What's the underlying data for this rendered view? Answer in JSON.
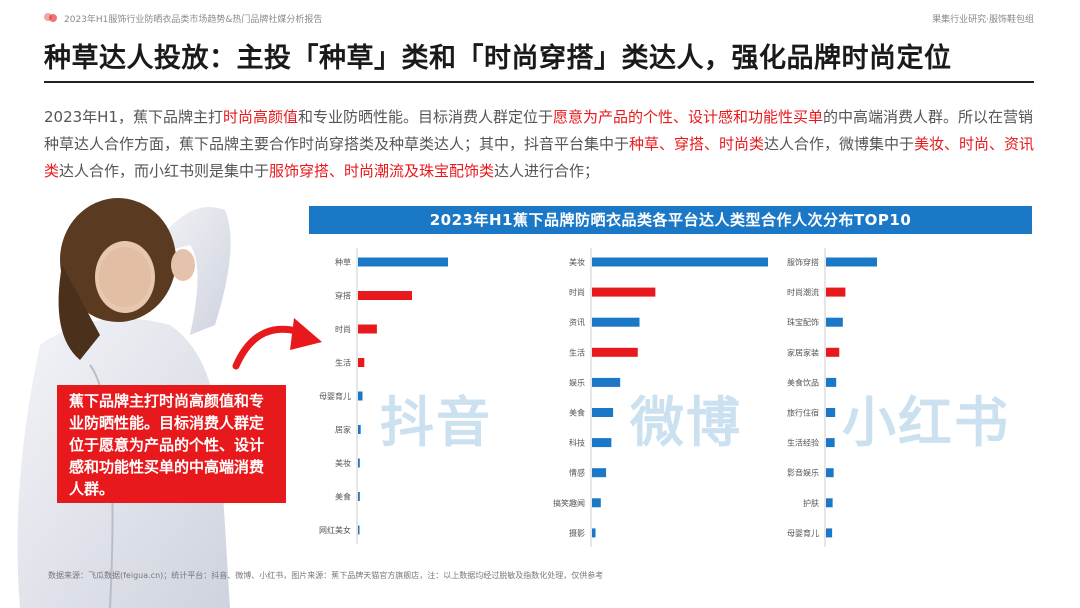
{
  "header": {
    "report_title": "2023年H1服饰行业防晒衣品类市场趋势&热门品牌社媒分析报告",
    "org": "果集行业研究·服饰鞋包组",
    "headline": "种草达人投放：主投「种草」类和「时尚穿搭」类达人，强化品牌时尚定位"
  },
  "intro": {
    "p1_a": "2023年H1，蕉下品牌主打",
    "p1_hl1": "时尚高颜值",
    "p1_b": "和专业防晒性能。目标消费人群定位于",
    "p1_hl2": "愿意为产品的个性、设计感和功能性买单",
    "p1_c": "的中高端消费人群。所以在营销种草达人合作方面，蕉下品牌主要合作时尚穿搭类及种草类达人；其中，抖音平台集中于",
    "p1_hl3": "种草、穿搭、时尚类",
    "p1_d": "达人合作，微博集中于",
    "p1_hl4": "美妆、时尚、资讯类",
    "p1_e": "达人合作，而小红书则是集中于",
    "p1_hl5": "服饰穿搭、时尚潮流及珠宝配饰类",
    "p1_f": "达人进行合作；"
  },
  "callout": "蕉下品牌主打时尚高颜值和专业防晒性能。目标消费人群定位于愿意为产品的个性、设计感和功能性买单的中高端消费人群。",
  "colors": {
    "blue": "#1b78c6",
    "red": "#e8191c",
    "watermark": "#bcd8ec"
  },
  "chart_data": [
    {
      "type": "bar",
      "watermark": "抖音",
      "categories": [
        "种草",
        "穿搭",
        "时尚",
        "生活",
        "母婴育儿",
        "居家",
        "美妆",
        "美食",
        "网红美女"
      ],
      "values": [
        100,
        60,
        21,
        7,
        5,
        3,
        2,
        2,
        1
      ],
      "highlight": [
        false,
        true,
        true,
        true,
        false,
        false,
        false,
        false,
        false
      ]
    },
    {
      "type": "bar",
      "watermark": "微博",
      "categories": [
        "美妆",
        "时尚",
        "资讯",
        "生活",
        "娱乐",
        "美食",
        "科技",
        "情感",
        "搞笑趣闻",
        "摄影"
      ],
      "values": [
        100,
        36,
        27,
        26,
        16,
        12,
        11,
        8,
        5,
        2
      ],
      "highlight": [
        false,
        true,
        false,
        true,
        false,
        false,
        false,
        false,
        false,
        false
      ]
    },
    {
      "type": "bar",
      "watermark": "小红书",
      "categories": [
        "服饰穿搭",
        "时尚潮流",
        "珠宝配饰",
        "家居家装",
        "美食饮品",
        "旅行住宿",
        "生活经验",
        "影音娱乐",
        "护肤",
        "母婴育儿"
      ],
      "values": [
        100,
        38,
        33,
        26,
        20,
        18,
        17,
        15,
        13,
        12
      ],
      "highlight": [
        false,
        true,
        false,
        true,
        false,
        false,
        false,
        false,
        false,
        false
      ]
    }
  ],
  "chart_title": "2023年H1蕉下品牌防晒衣品类各平台达人类型合作人次分布TOP10",
  "source": "数据来源：飞瓜数据(feigua.cn)；统计平台：抖音、微博、小红书，图片来源：蕉下品牌天猫官方旗舰店，注：以上数据均经过脱敏及指数化处理，仅供参考"
}
